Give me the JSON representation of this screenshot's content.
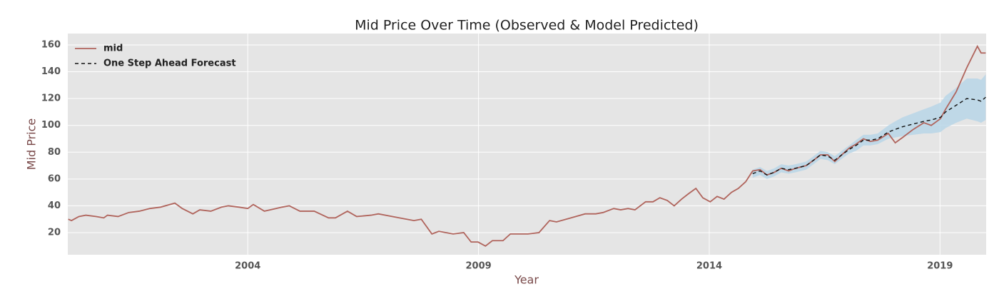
{
  "chart_data": {
    "type": "line",
    "title": "Mid Price Over Time (Observed & Model Predicted)",
    "x_label": "Year",
    "y_label": "Mid Price",
    "x": [
      2000.11,
      2000.18,
      2000.34,
      2000.49,
      2000.72,
      2000.88,
      2000.96,
      2001.19,
      2001.42,
      2001.65,
      2001.88,
      2002.11,
      2002.42,
      2002.58,
      2002.81,
      2002.96,
      2003.2,
      2003.43,
      2003.58,
      2003.81,
      2004.0,
      2004.12,
      2004.36,
      2004.74,
      2004.9,
      2005.13,
      2005.44,
      2005.75,
      2005.9,
      2006.16,
      2006.36,
      2006.67,
      2006.83,
      2007.29,
      2007.6,
      2007.76,
      2007.99,
      2008.14,
      2008.45,
      2008.68,
      2008.84,
      2008.99,
      2009.15,
      2009.3,
      2009.53,
      2009.69,
      2009.84,
      2010.07,
      2010.31,
      2010.54,
      2010.69,
      2011.0,
      2011.31,
      2011.54,
      2011.7,
      2011.93,
      2012.08,
      2012.24,
      2012.39,
      2012.62,
      2012.78,
      2012.93,
      2013.09,
      2013.24,
      2013.4,
      2013.55,
      2013.71,
      2013.86,
      2014.02,
      2014.17,
      2014.32,
      2014.48,
      2014.63,
      2014.79,
      2014.94,
      2015.1,
      2015.25,
      2015.41,
      2015.56,
      2015.72,
      2015.87,
      2016.1,
      2016.26,
      2016.41,
      2016.57,
      2016.72,
      2016.87,
      2017.03,
      2017.18,
      2017.34,
      2017.49,
      2017.65,
      2017.88,
      2018.03,
      2018.19,
      2018.42,
      2018.65,
      2018.81,
      2019.01,
      2019.12,
      2019.35,
      2019.58,
      2019.81,
      2019.89,
      2019.99
    ],
    "series": [
      {
        "name": "mid",
        "color": "#b0645c",
        "dash": false,
        "values": [
          30,
          29,
          32,
          33,
          32,
          31,
          33,
          32,
          35,
          36,
          38,
          39,
          42,
          38,
          34,
          37,
          36,
          39,
          40,
          39,
          38,
          41,
          36,
          39,
          40,
          36,
          36,
          31,
          31,
          36,
          32,
          33,
          34,
          31,
          29,
          30,
          19,
          21,
          19,
          20,
          13,
          13,
          10,
          14,
          14,
          19,
          19,
          19,
          20,
          29,
          28,
          31,
          34,
          34,
          35,
          38,
          37,
          38,
          37,
          43,
          43,
          46,
          44,
          40,
          45,
          49,
          53,
          46,
          43,
          47,
          45,
          50,
          53,
          58,
          66,
          67,
          63,
          65,
          68,
          66,
          68,
          70,
          74,
          78,
          78,
          73,
          78,
          83,
          86,
          90,
          88,
          89,
          94,
          87,
          91,
          97,
          102,
          100,
          105,
          112,
          125,
          143,
          159,
          154,
          154
        ]
      },
      {
        "name": "One Step Ahead Forecast",
        "color": "#111111",
        "dash": true,
        "values": [
          null,
          null,
          null,
          null,
          null,
          null,
          null,
          null,
          null,
          null,
          null,
          null,
          null,
          null,
          null,
          null,
          null,
          null,
          null,
          null,
          null,
          null,
          null,
          null,
          null,
          null,
          null,
          null,
          null,
          null,
          null,
          null,
          null,
          null,
          null,
          null,
          null,
          null,
          null,
          null,
          null,
          null,
          null,
          null,
          null,
          null,
          null,
          null,
          null,
          null,
          null,
          null,
          null,
          null,
          null,
          null,
          null,
          null,
          null,
          null,
          null,
          null,
          null,
          null,
          null,
          null,
          null,
          null,
          null,
          null,
          null,
          null,
          null,
          null,
          64,
          66,
          63,
          65,
          68,
          67,
          68,
          70,
          74,
          78,
          77,
          74,
          78,
          82,
          85,
          89,
          89,
          90,
          95,
          97,
          99,
          101,
          103,
          104,
          106,
          110,
          115,
          120,
          119,
          118,
          121
        ]
      }
    ],
    "interval": {
      "color": "#b9d6e8",
      "lower": [
        null,
        null,
        null,
        null,
        null,
        null,
        null,
        null,
        null,
        null,
        null,
        null,
        null,
        null,
        null,
        null,
        null,
        null,
        null,
        null,
        null,
        null,
        null,
        null,
        null,
        null,
        null,
        null,
        null,
        null,
        null,
        null,
        null,
        null,
        null,
        null,
        null,
        null,
        null,
        null,
        null,
        null,
        null,
        null,
        null,
        null,
        null,
        null,
        null,
        null,
        null,
        null,
        null,
        null,
        null,
        null,
        null,
        null,
        null,
        null,
        null,
        null,
        null,
        null,
        null,
        null,
        null,
        null,
        null,
        null,
        null,
        null,
        null,
        null,
        61,
        63,
        60,
        62,
        65,
        64,
        65,
        67,
        71,
        75,
        74,
        71,
        75,
        79,
        81,
        85,
        85,
        86,
        90,
        91,
        92,
        93,
        94,
        94,
        95,
        98,
        102,
        105,
        103,
        102,
        104
      ],
      "upper": [
        null,
        null,
        null,
        null,
        null,
        null,
        null,
        null,
        null,
        null,
        null,
        null,
        null,
        null,
        null,
        null,
        null,
        null,
        null,
        null,
        null,
        null,
        null,
        null,
        null,
        null,
        null,
        null,
        null,
        null,
        null,
        null,
        null,
        null,
        null,
        null,
        null,
        null,
        null,
        null,
        null,
        null,
        null,
        null,
        null,
        null,
        null,
        null,
        null,
        null,
        null,
        null,
        null,
        null,
        null,
        null,
        null,
        null,
        null,
        null,
        null,
        null,
        null,
        null,
        null,
        null,
        null,
        null,
        null,
        null,
        null,
        null,
        null,
        null,
        67,
        69,
        66,
        68,
        71,
        70,
        71,
        73,
        77,
        81,
        80,
        77,
        81,
        85,
        89,
        93,
        93,
        94,
        100,
        103,
        106,
        109,
        112,
        114,
        117,
        122,
        128,
        135,
        135,
        134,
        138
      ]
    },
    "xlim": [
      2000.1,
      2020.0
    ],
    "xticks": [
      2004,
      2009,
      2014,
      2019
    ],
    "ylim": [
      3.5,
      168.5
    ],
    "yticks": [
      20,
      40,
      60,
      80,
      100,
      120,
      140,
      160
    ],
    "grid": true,
    "legend": "upper left"
  }
}
